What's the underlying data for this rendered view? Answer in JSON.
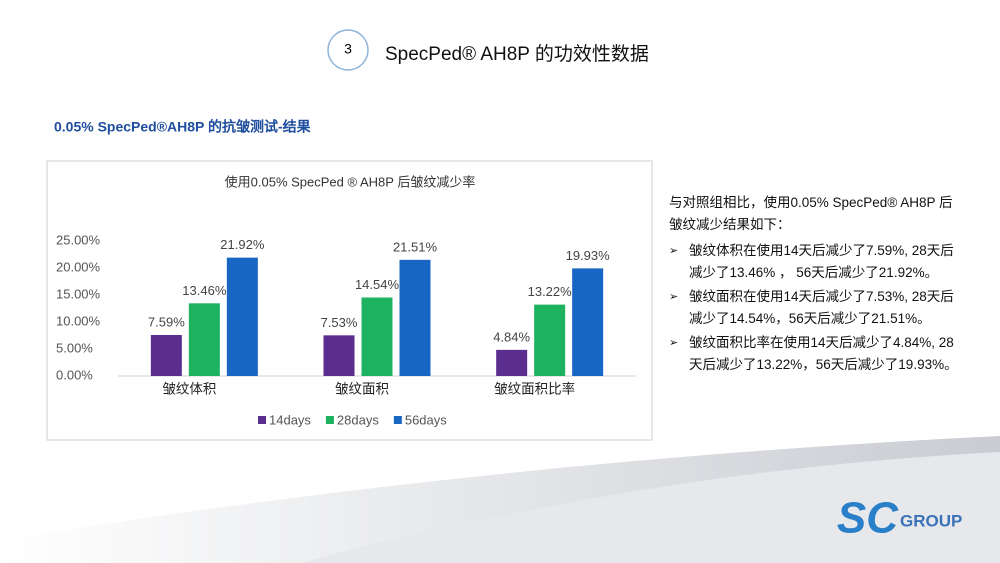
{
  "header": {
    "number": "3",
    "title": "SpecPed® AH8P 的功效性数据"
  },
  "subtitle": "0.05% SpecPed®AH8P 的抗皱测试-结果",
  "chart_data": {
    "type": "bar",
    "title": "使用0.05% SpecPed ® AH8P 后皱纹减少率",
    "categories": [
      "皱纹体积",
      "皱纹面积",
      "皱纹面积比率"
    ],
    "series": [
      {
        "name": "14days",
        "color": "#5b2d8e",
        "values": [
          7.59,
          7.53,
          4.84
        ],
        "value_labels": [
          "7.59%",
          "7.53%",
          "4.84%"
        ]
      },
      {
        "name": "28days",
        "color": "#1db25f",
        "values": [
          13.46,
          14.54,
          13.22
        ],
        "value_labels": [
          "13.46%",
          "14.54%",
          "13.22%"
        ]
      },
      {
        "name": "56days",
        "color": "#1766c4",
        "values": [
          21.92,
          21.51,
          19.93
        ],
        "value_labels": [
          "21.92%",
          "21.51%",
          "19.93%"
        ]
      }
    ],
    "ylim": [
      0,
      25
    ],
    "yticks": [
      {
        "value": 0,
        "label": "0.00%"
      },
      {
        "value": 5,
        "label": "5.00%"
      },
      {
        "value": 10,
        "label": "10.00%"
      },
      {
        "value": 15,
        "label": "15.00%"
      },
      {
        "value": 20,
        "label": "20.00%"
      },
      {
        "value": 25,
        "label": "25.00%"
      }
    ],
    "legend": "bottom"
  },
  "notes": {
    "intro": "与对照组相比，使用0.05% SpecPed® AH8P 后皱纹减少结果如下：",
    "bullets": [
      "皱纹体积在使用14天后减少了7.59%, 28天后减少了13.46% ， 56天后减少了21.92%。",
      "皱纹面积在使用14天后减少了7.53%, 28天后减少了14.54%，56天后减少了21.51%。",
      "皱纹面积比率在使用14天后减少了4.84%, 28天后减少了13.22%，56天后减少了19.93%。"
    ]
  },
  "logo": {
    "mark": "SC",
    "text": "GROUP"
  }
}
